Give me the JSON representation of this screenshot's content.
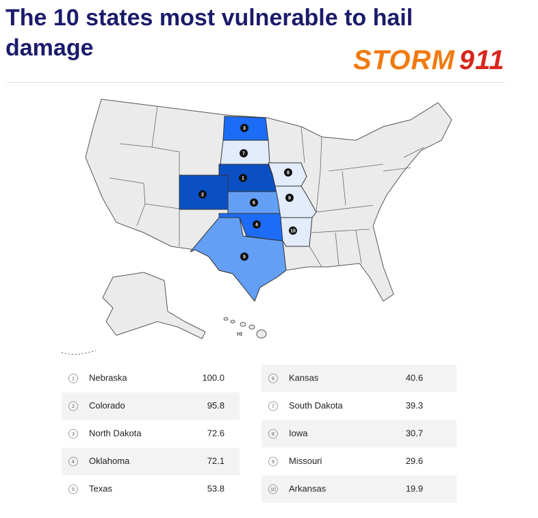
{
  "header": {
    "title": "The 10 states most vulnerable to hail damage",
    "logo_word": "STORM",
    "logo_number": "911"
  },
  "map": {
    "hawaii_label": "HI"
  },
  "table": {
    "rows": [
      {
        "rank": "1",
        "state": "Nebraska",
        "score": "100.0",
        "color": "#0b4fc4"
      },
      {
        "rank": "2",
        "state": "Colorado",
        "score": "95.8",
        "color": "#0b4fc4"
      },
      {
        "rank": "3",
        "state": "North Dakota",
        "score": "72.6",
        "color": "#1c6cf5"
      },
      {
        "rank": "4",
        "state": "Oklahoma",
        "score": "72.1",
        "color": "#1c6cf5"
      },
      {
        "rank": "5",
        "state": "Texas",
        "score": "53.8",
        "color": "#649ff6"
      },
      {
        "rank": "6",
        "state": "Kansas",
        "score": "40.6",
        "color": "#649ff6"
      },
      {
        "rank": "7",
        "state": "South Dakota",
        "score": "39.3",
        "color": "#e2ecfa"
      },
      {
        "rank": "8",
        "state": "Iowa",
        "score": "30.7",
        "color": "#e2ecfa"
      },
      {
        "rank": "9",
        "state": "Missouri",
        "score": "29.6",
        "color": "#e2ecfa"
      },
      {
        "rank": "10",
        "state": "Arkansas",
        "score": "19.9",
        "color": "#e2ecfa"
      }
    ]
  }
}
